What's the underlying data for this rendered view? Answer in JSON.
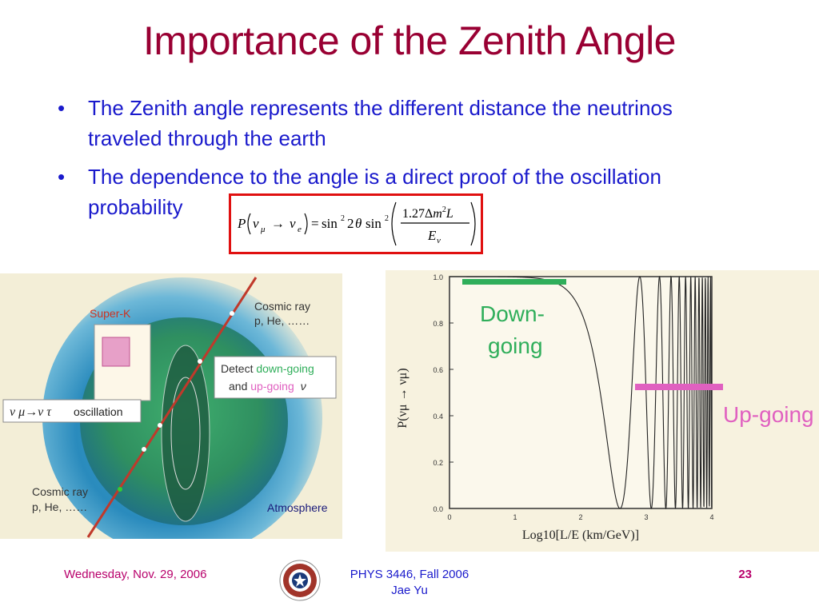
{
  "slide": {
    "title": "Importance of the Zenith Angle",
    "bullets": [
      {
        "line1": "The Zenith angle represents the different distance the neutrinos",
        "line2": "traveled through the earth"
      },
      {
        "line1": "The dependence to the angle is a direct proof of the oscillation",
        "line2": "probability"
      }
    ],
    "bullet_glyph": "•"
  },
  "equation": {
    "lhs_P": "P",
    "nu": "ν",
    "mu": "μ",
    "e": "e",
    "arrow": "→",
    "sin": "sin",
    "two": "2",
    "theta": "θ",
    "eq": "=",
    "numerator": "1.27Δm²L",
    "num_a": "1.27Δ",
    "num_m": "m",
    "num_sup": "2",
    "num_L": "L",
    "denominator_E": "E",
    "denominator_sub": "ν"
  },
  "diagram": {
    "label_superk": "Super-K",
    "label_cosmic_top_1": "Cosmic ray",
    "label_cosmic_top_2": "p, He, ……",
    "label_detect_1a": "Detect ",
    "label_detect_1b": "down-going",
    "label_detect_2a": "and ",
    "label_detect_2b": "up-going",
    "label_detect_2c": "ν",
    "label_osc_a": "ν μ→ν τ",
    "label_osc_b": "oscillation",
    "label_cosmic_bot_1": "Cosmic ray",
    "label_cosmic_bot_2": "p, He, ……",
    "label_atmosphere": "Atmosphere"
  },
  "plot": {
    "ylabel": "P(νμ → νμ)",
    "xlabel": "Log10[L/E (km/GeV)]",
    "yticks": [
      "1.0",
      "0.8",
      "0.6",
      "0.4",
      "0.2",
      "0.0"
    ],
    "xticks": [
      "0",
      "1",
      "2",
      "3",
      "4"
    ],
    "label_down": "Down-",
    "label_going": "going",
    "label_up": "Up-going",
    "colors": {
      "down": "#2fae5a",
      "up": "#e060c0",
      "curve": "#222222"
    }
  },
  "footer": {
    "date": "Wednesday, Nov. 29, 2006",
    "course": "PHYS 3446, Fall 2006",
    "author": "Jae Yu",
    "page": "23"
  }
}
